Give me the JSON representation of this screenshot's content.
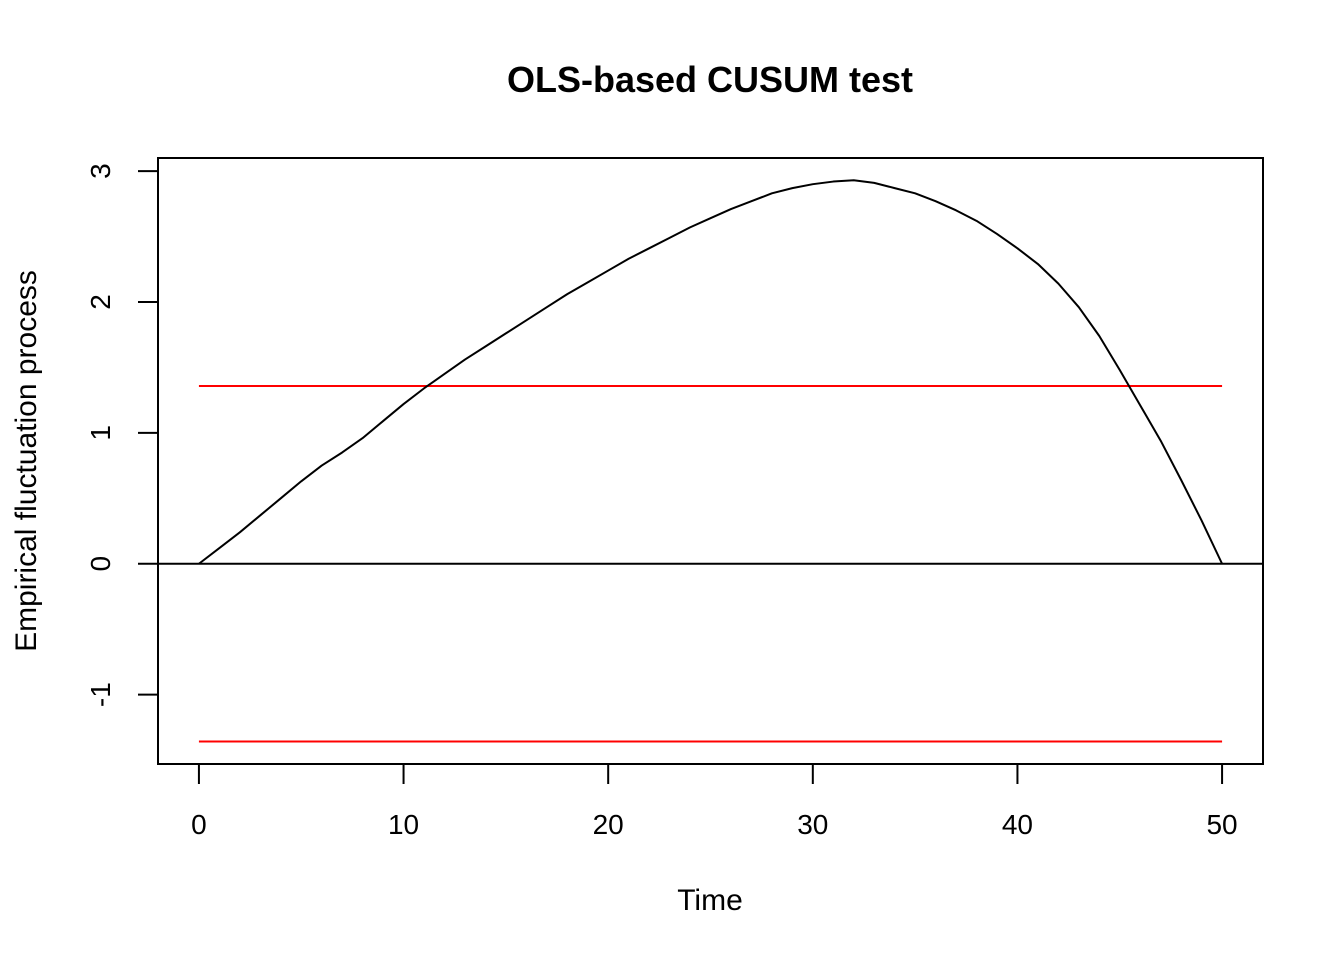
{
  "chart_data": {
    "type": "line",
    "title": "OLS-based CUSUM test",
    "xlabel": "Time",
    "ylabel": "Empirical fluctuation process",
    "xlim": [
      -2.0,
      52.0
    ],
    "ylim": [
      -1.53,
      3.1
    ],
    "x_ticks": [
      0,
      10,
      20,
      30,
      40,
      50
    ],
    "x_tick_labels": [
      "0",
      "10",
      "20",
      "30",
      "40",
      "50"
    ],
    "y_ticks": [
      -1,
      0,
      1,
      2,
      3
    ],
    "y_tick_labels": [
      "-1",
      "0",
      "1",
      "2",
      "3"
    ],
    "grid": false,
    "legend": "none",
    "series": [
      {
        "color": "#000000",
        "x": [
          0,
          1,
          2,
          3,
          4,
          5,
          6,
          7,
          8,
          9,
          10,
          11,
          12,
          13,
          14,
          15,
          16,
          17,
          18,
          19,
          20,
          21,
          22,
          23,
          24,
          25,
          26,
          27,
          28,
          29,
          30,
          31,
          32,
          33,
          34,
          35,
          36,
          37,
          38,
          39,
          40,
          41,
          42,
          43,
          44,
          45,
          46,
          47,
          48,
          49,
          50
        ],
        "values": [
          0.0,
          0.12,
          0.24,
          0.37,
          0.5,
          0.63,
          0.75,
          0.85,
          0.96,
          1.09,
          1.22,
          1.34,
          1.45,
          1.56,
          1.66,
          1.76,
          1.86,
          1.96,
          2.06,
          2.15,
          2.24,
          2.33,
          2.41,
          2.49,
          2.57,
          2.64,
          2.71,
          2.77,
          2.83,
          2.87,
          2.9,
          2.92,
          2.93,
          2.91,
          2.87,
          2.83,
          2.77,
          2.7,
          2.62,
          2.52,
          2.41,
          2.29,
          2.14,
          1.96,
          1.74,
          1.48,
          1.21,
          0.94,
          0.64,
          0.33,
          0.0
        ]
      }
    ],
    "boundaries": [
      {
        "color": "#ff0000",
        "value": 1.358,
        "x": [
          0,
          50
        ]
      },
      {
        "color": "#ff0000",
        "value": -1.358,
        "x": [
          0,
          50
        ]
      }
    ],
    "reference_line": {
      "color": "#000000",
      "value": 0
    }
  }
}
